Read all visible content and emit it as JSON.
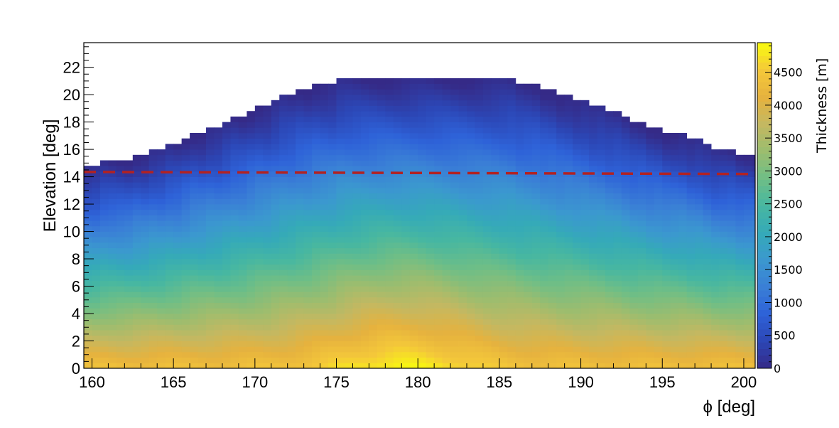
{
  "chart_data": {
    "type": "heatmap",
    "title": "",
    "xlabel": "ϕ [deg]",
    "ylabel": "Elevation [deg]",
    "zlabel": "Thickness [m]",
    "xlim": [
      159.5,
      200.7
    ],
    "ylim": [
      0,
      23.8
    ],
    "zlim": [
      0,
      4950
    ],
    "x_ticks": [
      "160",
      "165",
      "170",
      "175",
      "180",
      "185",
      "190",
      "195",
      "200"
    ],
    "y_ticks": [
      "0",
      "2",
      "4",
      "6",
      "8",
      "10",
      "12",
      "14",
      "16",
      "18",
      "20",
      "22"
    ],
    "z_ticks": [
      "0",
      "500",
      "1000",
      "1500",
      "2000",
      "2500",
      "3000",
      "3500",
      "4000",
      "4500"
    ],
    "grid": false,
    "colormap": [
      "#352a87",
      "#2c46b5",
      "#2e62d8",
      "#3a7fd6",
      "#3b98cf",
      "#35aab8",
      "#47b7a1",
      "#6fbe86",
      "#9bbd6f",
      "#c4b861",
      "#e6b23e",
      "#f4c83a",
      "#f9fb0e"
    ],
    "ridge_profile": {
      "phi": [
        159.5,
        162,
        163,
        164,
        165,
        166,
        167,
        168,
        169,
        170,
        171,
        172,
        173,
        174,
        175,
        176,
        177,
        180,
        183,
        184,
        185,
        186,
        187,
        188,
        189,
        190,
        191,
        192,
        193,
        194,
        195,
        196,
        197,
        198,
        199,
        200,
        200.7
      ],
      "elevation": [
        14.9,
        15.1,
        15.5,
        15.9,
        16.4,
        16.9,
        17.4,
        17.9,
        18.4,
        19.0,
        19.5,
        20.0,
        20.5,
        20.8,
        21.0,
        21.2,
        21.3,
        21.3,
        21.2,
        21.0,
        21.1,
        21.0,
        20.8,
        20.5,
        20.0,
        19.6,
        19.1,
        18.7,
        18.3,
        17.9,
        17.5,
        17.1,
        16.7,
        16.3,
        15.9,
        15.6,
        15.5
      ]
    },
    "annotations": [
      {
        "type": "horizontal-dashed-line",
        "color": "#b22222",
        "y_start": 14.35,
        "y_end": 14.2
      }
    ]
  }
}
